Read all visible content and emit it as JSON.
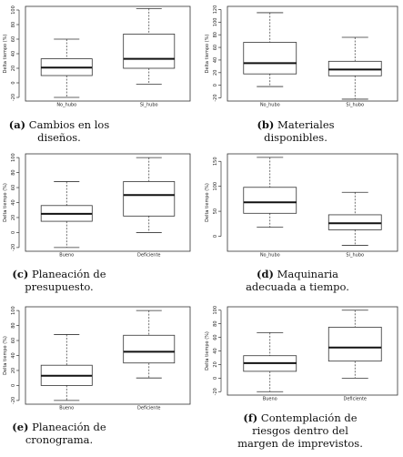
{
  "chart_data": [
    {
      "type": "boxplot",
      "ylabel": "Delta tiempo (%)",
      "yticks": [
        -20,
        0,
        20,
        40,
        60,
        80,
        100
      ],
      "ylim": [
        -25,
        105
      ],
      "categories": [
        "No_hubo",
        "Si_hubo"
      ],
      "boxes": [
        {
          "min": -20,
          "q1": 10,
          "median": 21,
          "q3": 33,
          "max": 60
        },
        {
          "min": -2,
          "q1": 20,
          "median": 33,
          "q3": 67,
          "max": 102
        }
      ],
      "caption": {
        "label": "(a)",
        "lines": [
          "Cambios en los",
          "diseños."
        ]
      }
    },
    {
      "type": "boxplot",
      "ylabel": "Delta tiempo (%)",
      "yticks": [
        -20,
        0,
        20,
        40,
        60,
        80,
        100,
        120
      ],
      "ylim": [
        -25,
        125
      ],
      "categories": [
        "No_hubo",
        "Si_hubo"
      ],
      "boxes": [
        {
          "min": -2,
          "q1": 18,
          "median": 35,
          "q3": 68,
          "max": 115
        },
        {
          "min": -22,
          "q1": 15,
          "median": 25,
          "q3": 38,
          "max": 76
        }
      ],
      "caption": {
        "label": "(b)",
        "lines": [
          "Materiales",
          "disponibles."
        ]
      }
    },
    {
      "type": "boxplot",
      "ylabel": "Delta tiempo (%)",
      "yticks": [
        -20,
        0,
        20,
        40,
        60,
        80,
        100
      ],
      "ylim": [
        -25,
        105
      ],
      "categories": [
        "Bueno",
        "Deficiente"
      ],
      "boxes": [
        {
          "min": -20,
          "q1": 15,
          "median": 25,
          "q3": 36,
          "max": 68
        },
        {
          "min": 0,
          "q1": 22,
          "median": 50,
          "q3": 68,
          "max": 100
        }
      ],
      "caption": {
        "label": "(c)",
        "lines": [
          "Planeación de",
          "presupuesto."
        ]
      }
    },
    {
      "type": "boxplot",
      "ylabel": "Delta tiempo (%)",
      "yticks": [
        0,
        50,
        100,
        150
      ],
      "ylim": [
        -30,
        165
      ],
      "categories": [
        "No_hubo",
        "Si_hubo"
      ],
      "boxes": [
        {
          "min": 18,
          "q1": 46,
          "median": 68,
          "q3": 98,
          "max": 158
        },
        {
          "min": -18,
          "q1": 13,
          "median": 26,
          "q3": 43,
          "max": 88
        }
      ],
      "caption": {
        "label": "(d)",
        "lines": [
          "Maquinaria",
          "adecuada a tiempo."
        ]
      }
    },
    {
      "type": "boxplot",
      "ylabel": "Delta tiempo (%)",
      "yticks": [
        -20,
        0,
        20,
        40,
        60,
        80,
        100
      ],
      "ylim": [
        -25,
        105
      ],
      "categories": [
        "Bueno",
        "Deficiente"
      ],
      "boxes": [
        {
          "min": -20,
          "q1": 0,
          "median": 13,
          "q3": 27,
          "max": 68
        },
        {
          "min": 10,
          "q1": 30,
          "median": 45,
          "q3": 67,
          "max": 100
        }
      ],
      "caption": {
        "label": "(e)",
        "lines": [
          "Planeación de",
          "cronograma."
        ]
      }
    },
    {
      "type": "boxplot",
      "ylabel": "Delta tiempo (%)",
      "yticks": [
        -20,
        0,
        20,
        40,
        60,
        80,
        100
      ],
      "ylim": [
        -25,
        105
      ],
      "categories": [
        "Bueno",
        "Deficiente"
      ],
      "boxes": [
        {
          "min": -20,
          "q1": 10,
          "median": 22,
          "q3": 33,
          "max": 67
        },
        {
          "min": 0,
          "q1": 25,
          "median": 45,
          "q3": 75,
          "max": 100
        }
      ],
      "caption": {
        "label": "(f)",
        "lines": [
          "Contemplación de",
          "riesgos dentro del",
          "margen de imprevistos."
        ]
      }
    }
  ]
}
